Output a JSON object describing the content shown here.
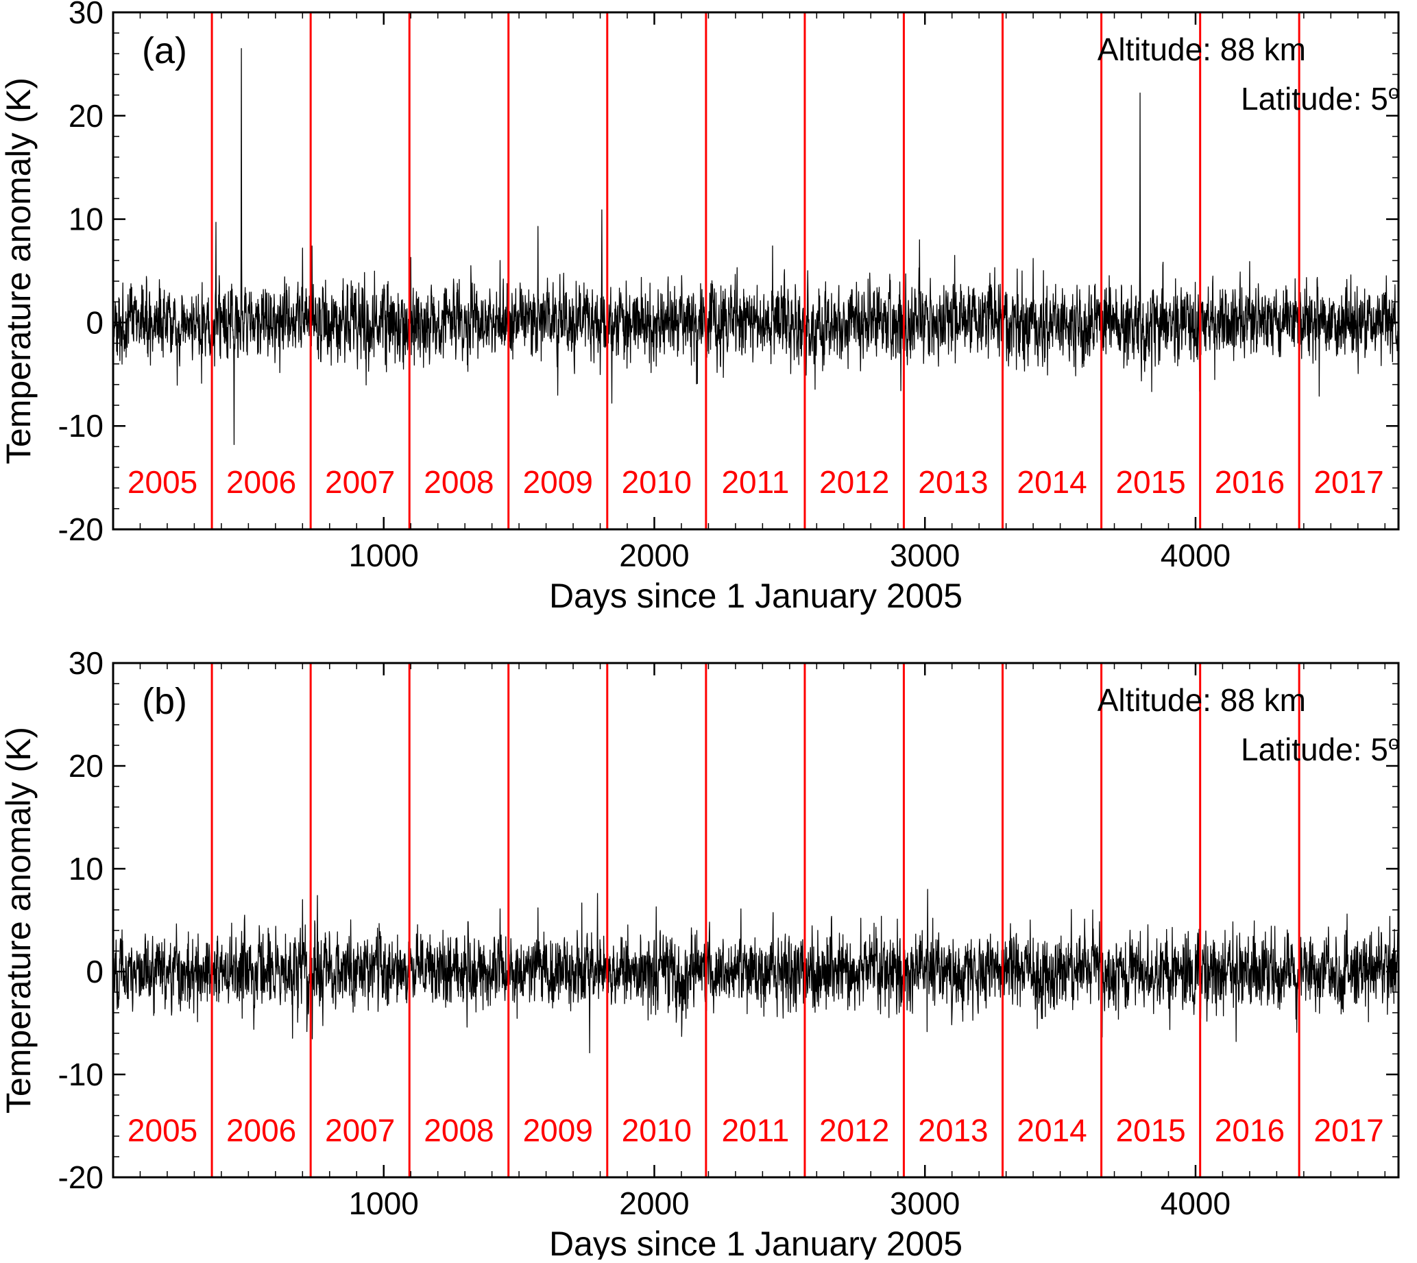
{
  "figure": {
    "background": "#ffffff",
    "colors": {
      "line": "#000000",
      "frame": "#000000",
      "year_lines": "#ff0000",
      "year_labels": "#ff0000",
      "text": "#000000"
    }
  },
  "chart_data": [
    {
      "type": "line",
      "panel_label": "(a)",
      "title": "",
      "xlabel": "Days since 1 January 2005",
      "ylabel": "Temperature anomaly (K)",
      "annotation_altitude": "Altitude: 88 km",
      "annotation_latitude_prefix": "Latitude: 5",
      "annotation_latitude_sup": "o",
      "xlim": [
        0,
        4750
      ],
      "ylim": [
        -20,
        30
      ],
      "x_ticks": [
        1000,
        2000,
        3000,
        4000
      ],
      "y_ticks": [
        -20,
        -10,
        0,
        10,
        20,
        30
      ],
      "x_minor_step": 100,
      "y_minor_step": 2,
      "grid": false,
      "year_boundaries": [
        365,
        730,
        1095,
        1461,
        1826,
        2191,
        2556,
        2922,
        3287,
        3652,
        4017,
        4383
      ],
      "year_labels": [
        "2005",
        "2006",
        "2007",
        "2008",
        "2009",
        "2010",
        "2011",
        "2012",
        "2013",
        "2014",
        "2015",
        "2016",
        "2017"
      ],
      "year_label_y_value": -16.5,
      "series_description": "Daily mesospheric temperature anomaly at 88 km, 5 deg latitude; high-frequency noise of mean 0 K, typical spread about +/-2 K with excursions to +/-7 K and isolated large spikes",
      "noise": {
        "std": 1.7,
        "ar": 0.3,
        "seed": 42,
        "clip": 7.5
      },
      "spikes": [
        {
          "day": 380,
          "value": 9.7
        },
        {
          "day": 447,
          "value": -11.8
        },
        {
          "day": 474,
          "value": 26.5
        },
        {
          "day": 700,
          "value": 7.2
        },
        {
          "day": 735,
          "value": 7.4
        },
        {
          "day": 1100,
          "value": 6.3
        },
        {
          "day": 1430,
          "value": 6.0
        },
        {
          "day": 1570,
          "value": 9.3
        },
        {
          "day": 1806,
          "value": 10.9
        },
        {
          "day": 1843,
          "value": -7.8
        },
        {
          "day": 2980,
          "value": 8.0
        },
        {
          "day": 3110,
          "value": 6.5
        },
        {
          "day": 3400,
          "value": 6.2
        },
        {
          "day": 3795,
          "value": 22.2
        },
        {
          "day": 4200,
          "value": 5.9
        }
      ]
    },
    {
      "type": "line",
      "panel_label": "(b)",
      "title": "",
      "xlabel": "Days since 1 January 2005",
      "ylabel": "Temperature anomaly (K)",
      "annotation_altitude": "Altitude: 88 km",
      "annotation_latitude_prefix": "Latitude: 5",
      "annotation_latitude_sup": "o",
      "xlim": [
        0,
        4750
      ],
      "ylim": [
        -20,
        30
      ],
      "x_ticks": [
        1000,
        2000,
        3000,
        4000
      ],
      "y_ticks": [
        -20,
        -10,
        0,
        10,
        20,
        30
      ],
      "x_minor_step": 100,
      "y_minor_step": 2,
      "grid": false,
      "year_boundaries": [
        365,
        730,
        1095,
        1461,
        1826,
        2191,
        2556,
        2922,
        3287,
        3652,
        4017,
        4383
      ],
      "year_labels": [
        "2005",
        "2006",
        "2007",
        "2008",
        "2009",
        "2010",
        "2011",
        "2012",
        "2013",
        "2014",
        "2015",
        "2016",
        "2017"
      ],
      "year_label_y_value": -16.5,
      "series_description": "Same series after removal of large outliers; noise of mean 0 K, spread about +/-2 K, extremes within roughly -8 to +8 K",
      "noise": {
        "std": 1.65,
        "ar": 0.3,
        "seed": 1337,
        "clip": 6.8
      },
      "spikes": [
        {
          "day": 700,
          "value": 7.0
        },
        {
          "day": 755,
          "value": 7.4
        },
        {
          "day": 1430,
          "value": 6.1
        },
        {
          "day": 1570,
          "value": 6.2
        },
        {
          "day": 1761,
          "value": -7.9
        },
        {
          "day": 1790,
          "value": 7.6
        },
        {
          "day": 2320,
          "value": 6.1
        },
        {
          "day": 3010,
          "value": 8.0
        },
        {
          "day": 3620,
          "value": 6.0
        },
        {
          "day": 4150,
          "value": -6.8
        },
        {
          "day": 4560,
          "value": 5.6
        }
      ]
    }
  ]
}
